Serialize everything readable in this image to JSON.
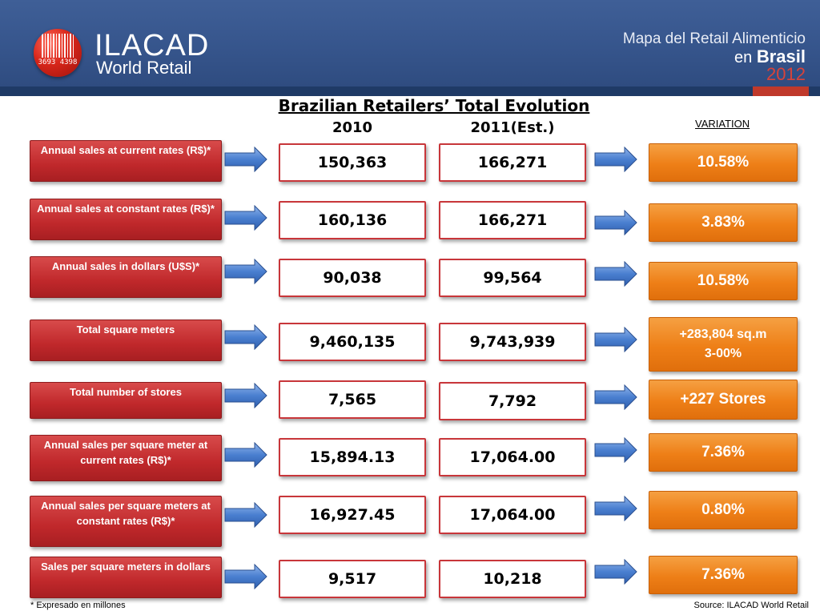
{
  "header": {
    "logo_digits": "3693  4398",
    "logo_title": "ILACAD",
    "logo_subtitle": "World Retail",
    "right_line1": "Mapa del Retail Alimenticio",
    "right_line2_small": "en",
    "right_line2_big": "Brasil",
    "right_line3": "2012"
  },
  "title": "Brazilian Retailers’ Total Evolution",
  "columns": {
    "year1": "2010",
    "year2": "2011(Est.)",
    "variation": "VARIATION"
  },
  "rows": [
    {
      "label": "Annual sales at current rates (R$)*",
      "v2010": "150,363",
      "v2011": "166,271",
      "variation": "10.58%"
    },
    {
      "label": "Annual sales at constant rates (R$)*",
      "v2010": "160,136",
      "v2011": "166,271",
      "variation": "3.83%"
    },
    {
      "label": "Annual sales in dollars  (U$S)*",
      "v2010": "90,038",
      "v2011": "99,564",
      "variation": "10.58%"
    },
    {
      "label": "Total  square meters",
      "v2010": "9,460,135",
      "v2011": "9,743,939",
      "variation_line1": "+283,804 sq.m",
      "variation_line2": "3-00%"
    },
    {
      "label": "Total  number of stores",
      "v2010": "7,565",
      "v2011": "7,792",
      "variation": "+227 Stores"
    },
    {
      "label": "Annual sales per square meter at current rates (R$)*",
      "v2010": "15,894.13",
      "v2011": "17,064.00",
      "variation": "7.36%"
    },
    {
      "label": "Annual sales per square meters at constant rates (R$)*",
      "v2010": "16,927.45",
      "v2011": "17,064.00",
      "variation": "0.80%"
    },
    {
      "label": "Sales per square meters in dollars",
      "v2010": "9,517",
      "v2011": "10,218",
      "variation": "7.36%"
    }
  ],
  "footer": {
    "note": "* Expresado en millones",
    "source": "Source: ILACAD World Retail"
  },
  "colors": {
    "label_red": "#c0282b",
    "variation_orange": "#ee7f17",
    "arrow_blue": "#4a7fd0",
    "header_blue": "#3a5a93"
  }
}
